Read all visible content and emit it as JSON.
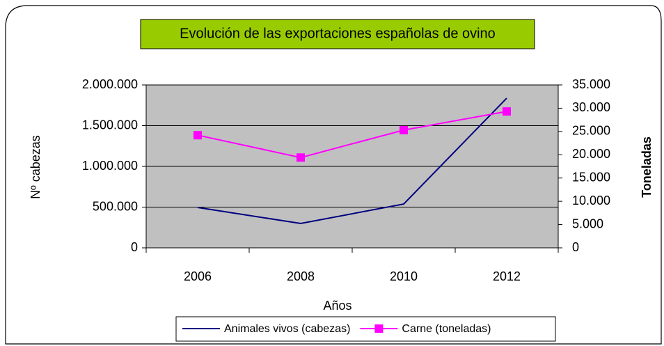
{
  "chart_data": {
    "type": "line",
    "title": "Evolución de las exportaciones españolas de ovino",
    "title_color": "#99cc00",
    "x_label": "Años",
    "y_label": "Nº cabezas",
    "y2_label": "Toneladas",
    "categories": [
      "2006",
      "2008",
      "2010",
      "2012"
    ],
    "series": [
      {
        "name": "Animales vivos (cabezas)",
        "color": "#000080",
        "values": [
          496000,
          299000,
          538000,
          1837000
        ]
      },
      {
        "name": "Carne (toneladas)",
        "color": "#ff00ff",
        "axis": "y2",
        "marker": "square",
        "values": [
          24200,
          19400,
          25300,
          29300
        ]
      }
    ],
    "ylim": [
      0,
      2000000
    ],
    "yticks": [
      0,
      {
        "value": 500000,
        "label": "500.000"
      },
      {
        "value": 1000000,
        "label": "1.000.000"
      },
      {
        "value": 1500000,
        "label": "1.500.000"
      },
      {
        "value": 2000000,
        "label": "2.000.000"
      }
    ],
    "y2lim": [
      0,
      35000
    ],
    "y2ticks": [
      0,
      {
        "value": 5000,
        "label": "5.000"
      },
      {
        "value": 10000,
        "label": "10.000"
      },
      {
        "value": 15000,
        "label": "15.000"
      },
      {
        "value": 20000,
        "label": "20.000"
      },
      {
        "value": 25000,
        "label": "25.000"
      },
      {
        "value": 30000,
        "label": "30.000"
      },
      {
        "value": 35000,
        "label": "35.000"
      }
    ],
    "grid": true,
    "plot_background": "#c0c0c0",
    "legend": "bottom"
  }
}
